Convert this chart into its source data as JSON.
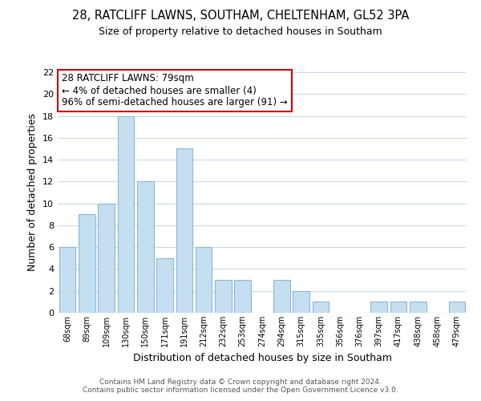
{
  "title": "28, RATCLIFF LAWNS, SOUTHAM, CHELTENHAM, GL52 3PA",
  "subtitle": "Size of property relative to detached houses in Southam",
  "xlabel": "Distribution of detached houses by size in Southam",
  "ylabel": "Number of detached properties",
  "categories": [
    "68sqm",
    "89sqm",
    "109sqm",
    "130sqm",
    "150sqm",
    "171sqm",
    "191sqm",
    "212sqm",
    "232sqm",
    "253sqm",
    "274sqm",
    "294sqm",
    "315sqm",
    "335sqm",
    "356sqm",
    "376sqm",
    "397sqm",
    "417sqm",
    "438sqm",
    "458sqm",
    "479sqm"
  ],
  "values": [
    6,
    9,
    10,
    18,
    12,
    5,
    15,
    6,
    3,
    3,
    0,
    3,
    2,
    1,
    0,
    0,
    1,
    1,
    1,
    0,
    1
  ],
  "bar_color": "#c5dff0",
  "bar_edge_color": "#8ab8d4",
  "ylim": [
    0,
    22
  ],
  "yticks": [
    0,
    2,
    4,
    6,
    8,
    10,
    12,
    14,
    16,
    18,
    20,
    22
  ],
  "annotation_box_text": "28 RATCLIFF LAWNS: 79sqm\n← 4% of detached houses are smaller (4)\n96% of semi-detached houses are larger (91) →",
  "annotation_box_color": "#ffffff",
  "annotation_box_edge_color": "#cc0000",
  "footnote1": "Contains HM Land Registry data © Crown copyright and database right 2024.",
  "footnote2": "Contains public sector information licensed under the Open Government Licence v3.0.",
  "background_color": "#ffffff",
  "grid_color": "#ccd9e8"
}
